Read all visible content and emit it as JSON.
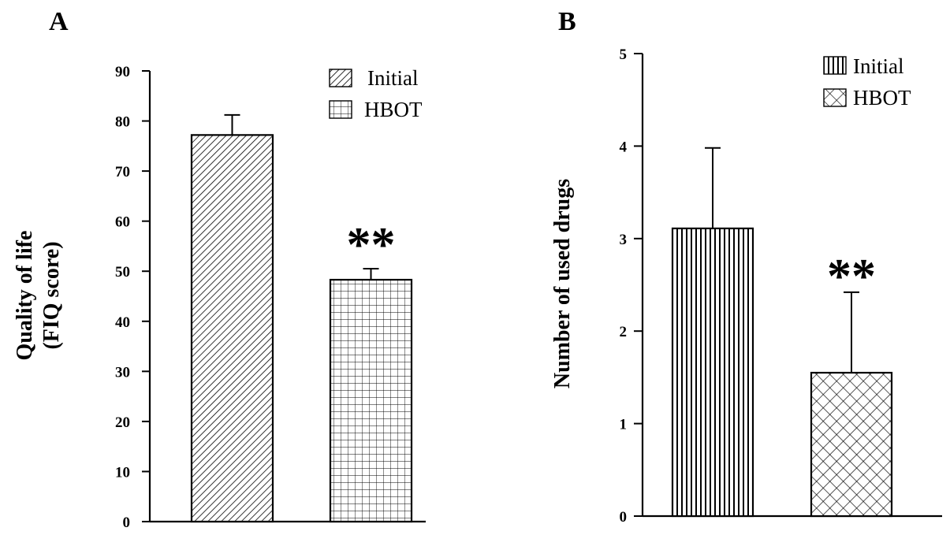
{
  "chart_data": [
    {
      "panel_label": "A",
      "type": "bar",
      "categories": [
        "Initial",
        "HBOT"
      ],
      "values": [
        77.2,
        48.3
      ],
      "error_upper": [
        81.2,
        50.5
      ],
      "significance": [
        "",
        "**"
      ],
      "ylabel": [
        "Quality of life",
        "(FIQ score)"
      ],
      "xlabel": "",
      "ylim": [
        0,
        90
      ],
      "yticks": [
        0,
        10,
        20,
        30,
        40,
        50,
        60,
        70,
        80,
        90
      ],
      "legend": {
        "entries": [
          "Initial",
          "HBOT"
        ],
        "position": "top-right"
      },
      "grid": false
    },
    {
      "panel_label": "B",
      "type": "bar",
      "categories": [
        "Initial",
        "HBOT"
      ],
      "values": [
        3.11,
        1.55
      ],
      "error_upper": [
        3.98,
        2.42
      ],
      "significance": [
        "",
        "**"
      ],
      "ylabel": [
        "Number of used drugs"
      ],
      "xlabel": "",
      "ylim": [
        0,
        5
      ],
      "yticks": [
        0,
        1,
        2,
        3,
        4,
        5
      ],
      "legend": {
        "entries": [
          "Initial",
          "HBOT"
        ],
        "position": "top-right"
      },
      "grid": false
    }
  ]
}
